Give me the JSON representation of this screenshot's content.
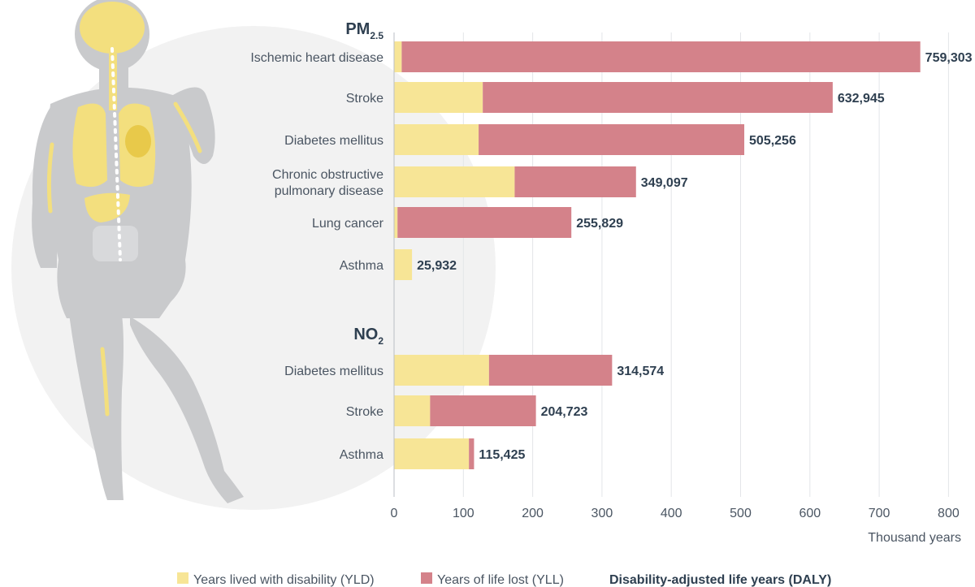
{
  "chart_data": {
    "type": "bar",
    "orientation": "horizontal",
    "stacked": true,
    "xlabel": "Thousand years",
    "xlim": [
      0,
      800
    ],
    "xticks": [
      0,
      100,
      200,
      300,
      400,
      500,
      600,
      700,
      800
    ],
    "legend": {
      "yld": "Years lived with disability (YLD)",
      "yll": "Years of life lost (YLL)",
      "daly": "Disability-adjusted life years (DALY)"
    },
    "colors": {
      "yld": "#f7e596",
      "yll": "#d4828a"
    },
    "groups": [
      {
        "title": "PM",
        "subscript": "2.5",
        "bars": [
          {
            "label": [
              "Ischemic heart disease"
            ],
            "yld": 11,
            "yll": 748.3,
            "total_label": "759,303"
          },
          {
            "label": [
              "Stroke"
            ],
            "yld": 128,
            "yll": 504.9,
            "total_label": "632,945"
          },
          {
            "label": [
              "Diabetes mellitus"
            ],
            "yld": 122,
            "yll": 383.3,
            "total_label": "505,256"
          },
          {
            "label": [
              "Chronic obstructive",
              "pulmonary disease"
            ],
            "yld": 174,
            "yll": 175.1,
            "total_label": "349,097"
          },
          {
            "label": [
              "Lung cancer"
            ],
            "yld": 5,
            "yll": 250.8,
            "total_label": "255,829"
          },
          {
            "label": [
              "Asthma"
            ],
            "yld": 25.9,
            "yll": 0,
            "total_label": "25,932"
          }
        ]
      },
      {
        "title": "NO",
        "subscript": "2",
        "bars": [
          {
            "label": [
              "Diabetes mellitus"
            ],
            "yld": 137,
            "yll": 177.6,
            "total_label": "314,574"
          },
          {
            "label": [
              "Stroke"
            ],
            "yld": 52,
            "yll": 152.7,
            "total_label": "204,723"
          },
          {
            "label": [
              "Asthma"
            ],
            "yld": 108,
            "yll": 7.4,
            "total_label": "115,425"
          }
        ]
      }
    ]
  }
}
